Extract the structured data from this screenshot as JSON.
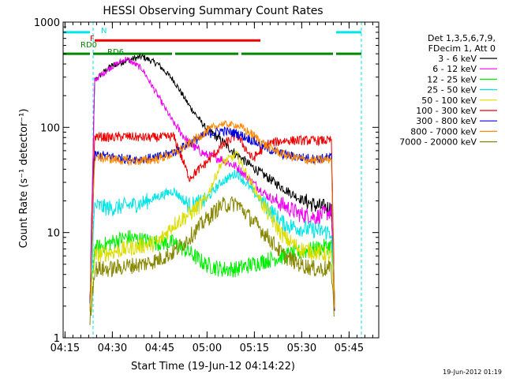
{
  "chart_data": {
    "type": "line",
    "title": "HESSI Observing Summary Count Rates",
    "xlabel": "Start Time (19-Jun-12 04:14:22)",
    "ylabel": "Count Rate (s⁻¹ detector⁻¹)",
    "yscale": "log",
    "ylim": [
      1,
      1000
    ],
    "xlim_minutes": [
      0,
      100
    ],
    "x_units": "minutes after 04:14:22",
    "x_ticks": [
      {
        "label": "04:15",
        "t": 0.6
      },
      {
        "label": "04:30",
        "t": 15.6
      },
      {
        "label": "04:45",
        "t": 30.6
      },
      {
        "label": "05:00",
        "t": 45.6
      },
      {
        "label": "05:15",
        "t": 60.6
      },
      {
        "label": "05:30",
        "t": 75.6
      },
      {
        "label": "05:45",
        "t": 90.6
      }
    ],
    "y_ticks": [
      {
        "label": "1",
        "value": 1
      },
      {
        "label": "10",
        "value": 10
      },
      {
        "label": "100",
        "value": 100
      },
      {
        "label": "1000",
        "value": 1000
      }
    ],
    "legend_header": [
      "Det 1,3,5,6,7,9,",
      "FDecim 1, Att 0"
    ],
    "legend_position": "right",
    "timestamp": "19-Jun-2012 01:19",
    "flag_bars": [
      {
        "label": "N",
        "color": "#00e5e5",
        "segments": [
          [
            0,
            9
          ],
          [
            86,
            95
          ]
        ],
        "level": 800
      },
      {
        "label": "F",
        "color": "#ee0000",
        "segments": [
          [
            10,
            63
          ]
        ],
        "level": 670
      },
      {
        "label": "RD0",
        "color": "#008800",
        "segments": [
          [
            0,
            9
          ],
          [
            9,
            35
          ],
          [
            35,
            56
          ],
          [
            56,
            86
          ],
          [
            86,
            95
          ]
        ],
        "level": 500
      },
      {
        "label": "RD6",
        "color": "#008800",
        "segments": [],
        "level": 500
      }
    ],
    "time_markers": [
      {
        "t": 9.5,
        "color": "#00e5e5",
        "style": "dashed"
      },
      {
        "t": 94.5,
        "color": "#00e5e5",
        "style": "dashed"
      }
    ],
    "data_interval": [
      8.5,
      86
    ],
    "series": [
      {
        "name": "3 - 6 keV",
        "color": "#000000",
        "t": [
          8.5,
          10,
          15,
          20,
          25,
          30,
          35,
          40,
          45,
          50,
          55,
          60,
          65,
          70,
          75,
          80,
          85,
          86
        ],
        "v": [
          2,
          280,
          380,
          430,
          470,
          400,
          280,
          160,
          100,
          75,
          55,
          42,
          33,
          26,
          21,
          18,
          17,
          2
        ]
      },
      {
        "name": "6 - 12 keV",
        "color": "#ee00ee",
        "t": [
          8.5,
          10,
          15,
          20,
          25,
          30,
          35,
          40,
          45,
          50,
          55,
          60,
          65,
          70,
          75,
          80,
          85,
          86
        ],
        "v": [
          2,
          280,
          370,
          450,
          360,
          200,
          110,
          70,
          55,
          50,
          42,
          30,
          22,
          18,
          15,
          14,
          16,
          2
        ]
      },
      {
        "name": "12 - 25 keV",
        "color": "#00ee00",
        "t": [
          8.5,
          10,
          15,
          20,
          25,
          30,
          35,
          40,
          45,
          50,
          55,
          60,
          65,
          70,
          75,
          80,
          85,
          86
        ],
        "v": [
          1.8,
          7,
          8,
          9,
          8.5,
          8,
          8,
          6.5,
          5,
          4.5,
          4.5,
          5,
          5.5,
          6,
          6.5,
          7,
          7.5,
          1.8
        ]
      },
      {
        "name": "25 - 50 keV",
        "color": "#00e5e5",
        "t": [
          8.5,
          10,
          15,
          20,
          25,
          30,
          35,
          40,
          45,
          50,
          55,
          60,
          65,
          70,
          75,
          80,
          85,
          86
        ],
        "v": [
          2,
          18,
          17,
          18,
          19,
          22,
          25,
          18,
          20,
          30,
          37,
          25,
          17,
          12,
          11,
          10.5,
          10,
          2
        ]
      },
      {
        "name": "50 - 100 keV",
        "color": "#dddd00",
        "t": [
          8.5,
          10,
          15,
          20,
          25,
          30,
          35,
          40,
          45,
          50,
          55,
          60,
          65,
          70,
          75,
          80,
          85,
          86
        ],
        "v": [
          2,
          6,
          6.5,
          7,
          7.5,
          8,
          12,
          15,
          20,
          45,
          55,
          28,
          15,
          9,
          7,
          6.5,
          6,
          2
        ]
      },
      {
        "name": "100 - 300 keV",
        "color": "#ee0000",
        "t": [
          8.5,
          10,
          15,
          20,
          25,
          30,
          35,
          40,
          45,
          50,
          55,
          60,
          65,
          70,
          75,
          80,
          85,
          86
        ],
        "v": [
          2,
          82,
          80,
          82,
          80,
          80,
          82,
          33,
          45,
          65,
          85,
          50,
          70,
          75,
          75,
          75,
          75,
          2
        ]
      },
      {
        "name": "300 - 800 keV",
        "color": "#0000dd",
        "t": [
          8.5,
          10,
          15,
          20,
          25,
          30,
          35,
          40,
          45,
          50,
          55,
          60,
          65,
          70,
          75,
          80,
          85,
          86
        ],
        "v": [
          2,
          55,
          53,
          50,
          50,
          52,
          58,
          70,
          85,
          93,
          88,
          75,
          62,
          55,
          52,
          50,
          52,
          2
        ]
      },
      {
        "name": "800 - 7000 keV",
        "color": "#ff8800",
        "t": [
          8.5,
          10,
          15,
          20,
          25,
          30,
          35,
          40,
          45,
          50,
          55,
          60,
          65,
          70,
          75,
          80,
          85,
          86
        ],
        "v": [
          2,
          52,
          50,
          48,
          48,
          50,
          56,
          70,
          90,
          108,
          105,
          85,
          65,
          55,
          50,
          48,
          50,
          2
        ]
      },
      {
        "name": "7000 - 20000 keV",
        "color": "#888800",
        "t": [
          8.5,
          10,
          15,
          20,
          25,
          30,
          35,
          40,
          45,
          50,
          55,
          60,
          65,
          70,
          75,
          80,
          85,
          86
        ],
        "v": [
          1.5,
          4.5,
          4.5,
          4.8,
          5,
          5.5,
          6.5,
          9,
          13,
          18,
          19,
          13,
          9,
          6,
          5,
          4.5,
          4.5,
          1.5
        ]
      }
    ]
  }
}
